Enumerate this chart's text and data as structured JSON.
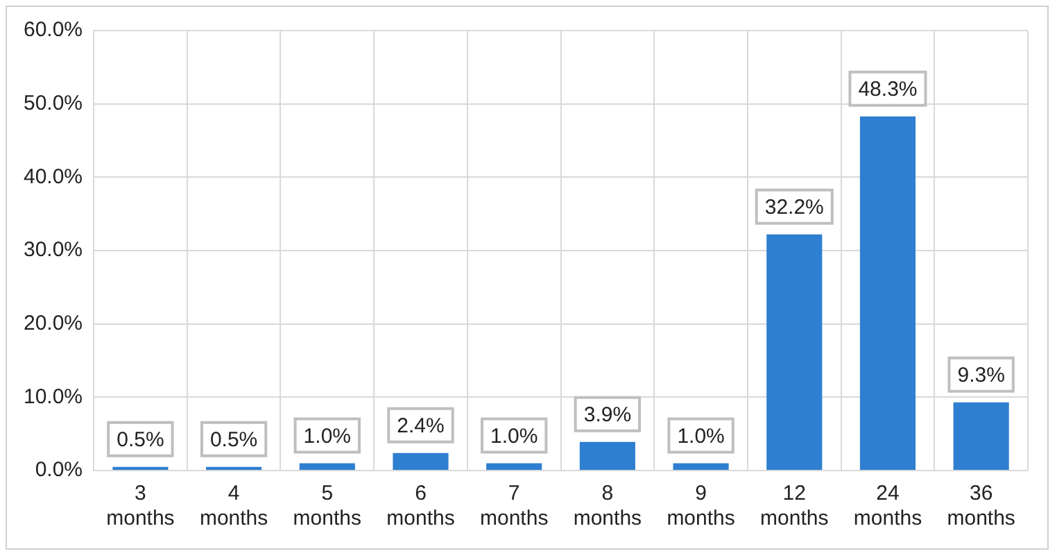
{
  "chart_data": {
    "type": "bar",
    "categories": [
      "3 months",
      "4 months",
      "5 months",
      "6 months",
      "7 months",
      "8 months",
      "9 months",
      "12 months",
      "24 months",
      "36 months"
    ],
    "values": [
      0.5,
      0.5,
      1.0,
      2.4,
      1.0,
      3.9,
      1.0,
      32.2,
      48.3,
      9.3
    ],
    "value_labels": [
      "0.5%",
      "0.5%",
      "1.0%",
      "2.4%",
      "1.0%",
      "3.9%",
      "1.0%",
      "32.2%",
      "48.3%",
      "9.3%"
    ],
    "color": "#2e7fd0",
    "ylim": [
      0,
      60
    ],
    "yticks": [
      {
        "value": 0,
        "label": "0.0%"
      },
      {
        "value": 10,
        "label": "10.0%"
      },
      {
        "value": 20,
        "label": "20.0%"
      },
      {
        "value": 30,
        "label": "30.0%"
      },
      {
        "value": 40,
        "label": "40.0%"
      },
      {
        "value": 50,
        "label": "50.0%"
      },
      {
        "value": 60,
        "label": "60.0%"
      }
    ],
    "grid": true
  }
}
